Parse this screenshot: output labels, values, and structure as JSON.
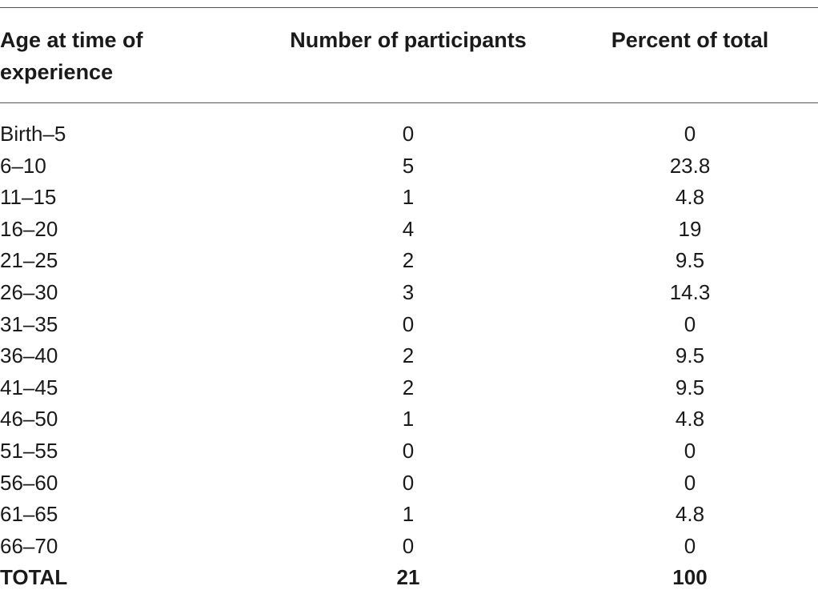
{
  "table": {
    "headers": {
      "age_line1": "Age at time of",
      "age_line2": "experience",
      "participants": "Number of participants",
      "percent": "Percent of total"
    },
    "rows": [
      {
        "age": "Birth–5",
        "count": "0",
        "percent": "0"
      },
      {
        "age": "6–10",
        "count": "5",
        "percent": "23.8"
      },
      {
        "age": "11–15",
        "count": "1",
        "percent": "4.8"
      },
      {
        "age": "16–20",
        "count": "4",
        "percent": "19"
      },
      {
        "age": "21–25",
        "count": "2",
        "percent": "9.5"
      },
      {
        "age": "26–30",
        "count": "3",
        "percent": "14.3"
      },
      {
        "age": "31–35",
        "count": "0",
        "percent": "0"
      },
      {
        "age": "36–40",
        "count": "2",
        "percent": "9.5"
      },
      {
        "age": "41–45",
        "count": "2",
        "percent": "9.5"
      },
      {
        "age": "46–50",
        "count": "1",
        "percent": "4.8"
      },
      {
        "age": "51–55",
        "count": "0",
        "percent": "0"
      },
      {
        "age": "56–60",
        "count": "0",
        "percent": "0"
      },
      {
        "age": "61–65",
        "count": "1",
        "percent": "4.8"
      },
      {
        "age": "66–70",
        "count": "0",
        "percent": "0"
      }
    ],
    "total": {
      "age": "TOTAL",
      "count": "21",
      "percent": "100"
    }
  }
}
